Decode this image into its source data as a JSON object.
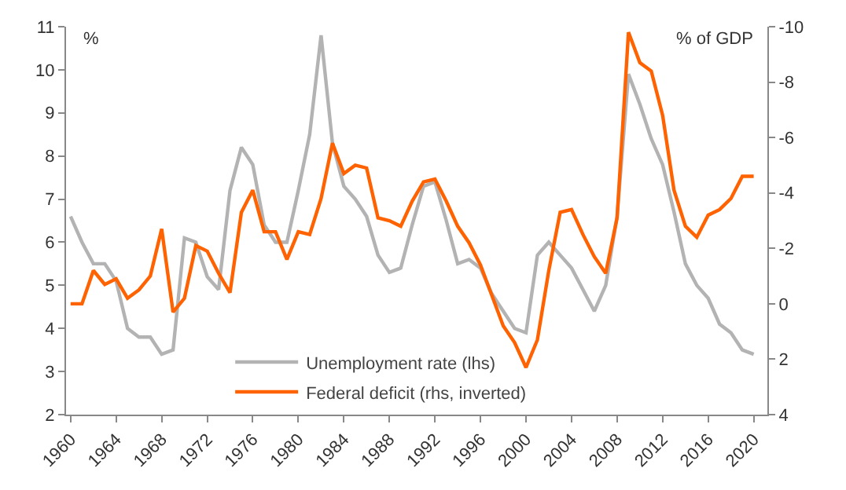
{
  "chart_data": {
    "type": "line",
    "ylabel": "%",
    "y2label": "% of GDP",
    "x": [
      1960,
      1961,
      1962,
      1963,
      1964,
      1965,
      1966,
      1967,
      1968,
      1969,
      1970,
      1971,
      1972,
      1973,
      1974,
      1975,
      1976,
      1977,
      1978,
      1979,
      1980,
      1981,
      1982,
      1983,
      1984,
      1985,
      1986,
      1987,
      1988,
      1989,
      1990,
      1991,
      1992,
      1993,
      1994,
      1995,
      1996,
      1997,
      1998,
      1999,
      2000,
      2001,
      2002,
      2003,
      2004,
      2005,
      2006,
      2007,
      2008,
      2009,
      2010,
      2011,
      2012,
      2013,
      2014,
      2015,
      2016,
      2017,
      2018,
      2019,
      2020
    ],
    "series": [
      {
        "name": "Unemployment rate (lhs)",
        "color": "#b3b3b3",
        "values": [
          6.6,
          6.0,
          5.5,
          5.5,
          5.1,
          4.0,
          3.8,
          3.8,
          3.4,
          3.5,
          6.1,
          6.0,
          5.2,
          4.9,
          7.2,
          8.2,
          7.8,
          6.4,
          6.0,
          6.0,
          7.2,
          8.5,
          10.8,
          8.3,
          7.3,
          7.0,
          6.6,
          5.7,
          5.3,
          5.4,
          6.4,
          7.3,
          7.4,
          6.5,
          5.5,
          5.6,
          5.4,
          4.8,
          4.4,
          4.0,
          3.9,
          5.7,
          6.0,
          5.7,
          5.4,
          4.9,
          4.4,
          5.0,
          6.6,
          9.9,
          9.2,
          8.4,
          7.8,
          6.7,
          5.5,
          5.0,
          4.7,
          4.1,
          3.9,
          3.5,
          3.4
        ]
      },
      {
        "name": "Federal deficit (rhs, inverted)",
        "color": "#ff6200",
        "axis": "y2",
        "values": [
          0,
          0,
          -1.2,
          -0.7,
          -0.9,
          -0.2,
          -0.5,
          -1.0,
          -2.7,
          0.3,
          -0.2,
          -2.1,
          -1.9,
          -1.1,
          -0.4,
          -3.3,
          -4.1,
          -2.6,
          -2.6,
          -1.6,
          -2.6,
          -2.5,
          -3.8,
          -5.8,
          -4.7,
          -5.0,
          -4.9,
          -3.1,
          -3.0,
          -2.8,
          -3.7,
          -4.4,
          -4.5,
          -3.7,
          -2.8,
          -2.2,
          -1.4,
          -0.3,
          0.8,
          1.4,
          2.3,
          1.3,
          -1.2,
          -3.3,
          -3.4,
          -2.5,
          -1.7,
          -1.1,
          -3.1,
          -9.8,
          -8.7,
          -8.4,
          -6.8,
          -4.1,
          -2.8,
          -2.4,
          -3.2,
          -3.4,
          -3.8,
          -4.6,
          -4.6
        ]
      }
    ],
    "xlim": [
      1959.6,
      2021.2
    ],
    "xticks": [
      1960,
      1964,
      1968,
      1972,
      1976,
      1980,
      1984,
      1988,
      1992,
      1996,
      2000,
      2004,
      2008,
      2012,
      2016,
      2020
    ],
    "ylim": [
      2,
      11
    ],
    "yticks": [
      2,
      3,
      4,
      5,
      6,
      7,
      8,
      9,
      10,
      11
    ],
    "y2lim": [
      4,
      -10
    ],
    "y2ticks": [
      4,
      2,
      0,
      -2,
      -4,
      -6,
      -8,
      -10
    ],
    "legend": "bottom",
    "marker": "none",
    "line_style": "solid"
  }
}
